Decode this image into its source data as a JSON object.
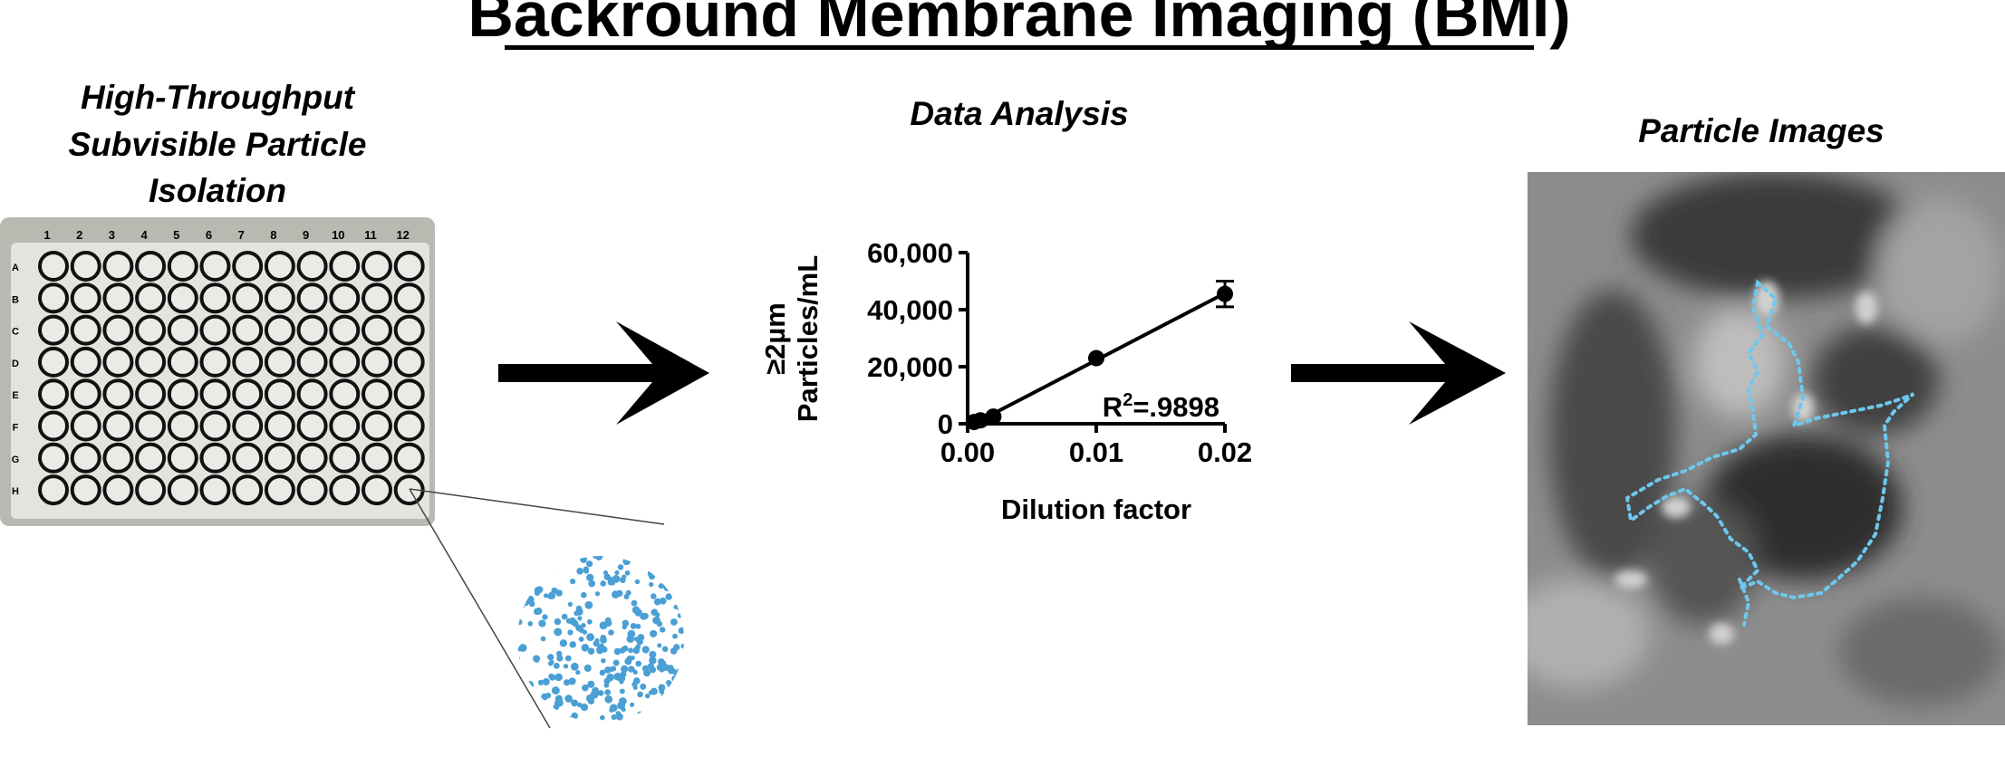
{
  "title": "Backround Membrane Imaging (BMI)",
  "panels": {
    "isolation": {
      "heading": [
        "High-Throughput",
        "Subvisible Particle",
        "Isolation"
      ],
      "plate": {
        "columns": [
          "1",
          "2",
          "3",
          "4",
          "5",
          "6",
          "7",
          "8",
          "9",
          "10",
          "11",
          "12"
        ],
        "rows": [
          "A",
          "B",
          "C",
          "D",
          "E",
          "F",
          "G",
          "H"
        ]
      }
    },
    "analysis": {
      "heading": "Data Analysis"
    },
    "images": {
      "heading": "Particle Images"
    }
  },
  "chart_data": {
    "type": "scatter",
    "x": [
      0.0005,
      0.001,
      0.002,
      0.01,
      0.02
    ],
    "values": [
      600,
      1200,
      2500,
      23000,
      45500
    ],
    "errors": [
      null,
      null,
      null,
      null,
      4500
    ],
    "color": "#000000",
    "fit_line": true,
    "xlabel": "Dilution factor",
    "ylabel": [
      "≥2µm",
      "Particles/mL"
    ],
    "annotation": {
      "base": "R",
      "sup": "2",
      "rest": "=.9898"
    },
    "xlim": [
      0,
      0.02
    ],
    "xticks": [
      {
        "value": 0,
        "label": "0.00"
      },
      0.01,
      0.02
    ],
    "ylim": [
      0,
      60000
    ],
    "yticks": [
      0,
      {
        "value": 20000,
        "label": "20,000"
      },
      {
        "value": 40000,
        "label": "40,000"
      },
      {
        "value": 60000,
        "label": "60,000"
      }
    ]
  }
}
